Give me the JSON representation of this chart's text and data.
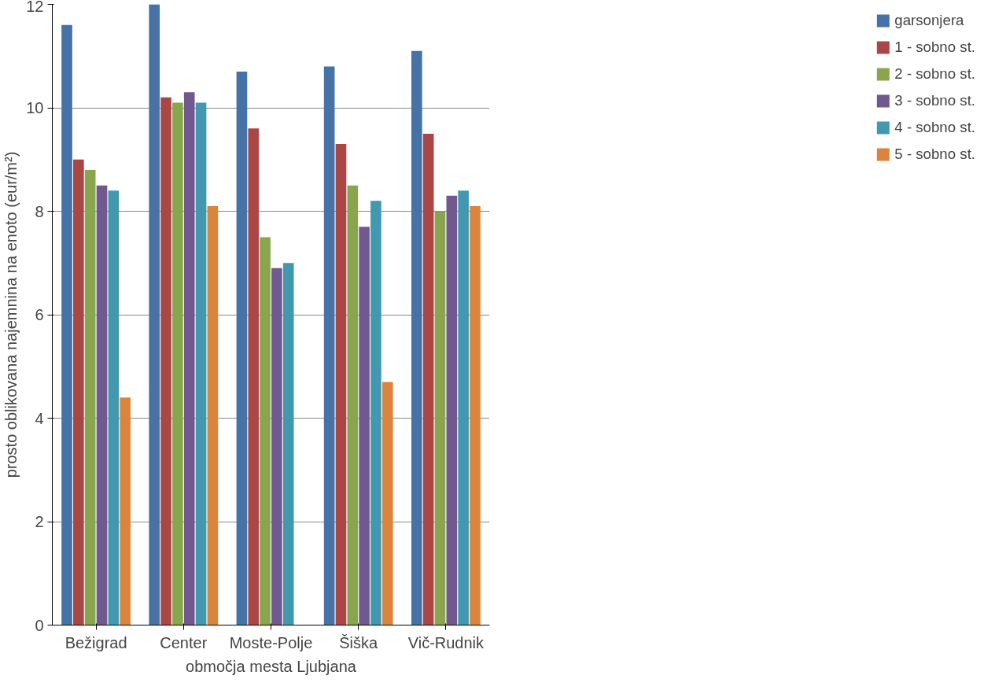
{
  "chart_data": {
    "type": "bar",
    "xlabel": "območja mesta Ljubjana",
    "ylabel": "prosto oblikovana najemnina na enoto (eur/m²)",
    "categories": [
      "Bežigrad",
      "Center",
      "Moste-Polje",
      "Šiška",
      "Vič-Rudnik"
    ],
    "series": [
      {
        "name": "garsonjera",
        "color": "#4572a7",
        "values": [
          11.6,
          12.0,
          10.7,
          10.8,
          11.1
        ]
      },
      {
        "name": "1 - sobno st.",
        "color": "#aa4643",
        "values": [
          9.0,
          10.2,
          9.6,
          9.3,
          9.5
        ]
      },
      {
        "name": "2 - sobno st.",
        "color": "#89a54e",
        "values": [
          8.8,
          10.1,
          7.5,
          8.5,
          8.0
        ]
      },
      {
        "name": "3 - sobno st.",
        "color": "#71588f",
        "values": [
          8.5,
          10.3,
          6.9,
          7.7,
          8.3
        ]
      },
      {
        "name": "4 - sobno st.",
        "color": "#4198af",
        "values": [
          8.4,
          10.1,
          7.0,
          8.2,
          8.4
        ]
      },
      {
        "name": "5 - sobno st.",
        "color": "#db843d",
        "values": [
          4.4,
          8.1,
          null,
          4.7,
          8.1
        ]
      }
    ],
    "ylim": [
      0,
      12
    ],
    "yticks": [
      0,
      2,
      4,
      6,
      8,
      10,
      12
    ],
    "grid": "y",
    "legend": "right"
  }
}
